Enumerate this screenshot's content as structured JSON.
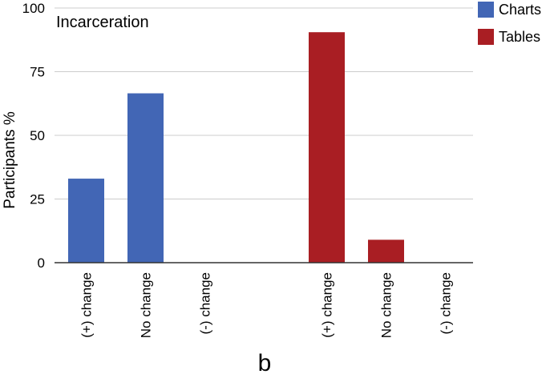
{
  "chart_data": {
    "type": "bar",
    "title": "Incarceration",
    "ylabel": "Participants %",
    "xlabel": "",
    "ylim": [
      0,
      100
    ],
    "yticks": [
      0,
      25,
      50,
      75,
      100
    ],
    "grid": true,
    "legend_position": "top-right",
    "categories": [
      "(+) change",
      "No change",
      "(-) change"
    ],
    "series": [
      {
        "name": "Charts",
        "color": "#4266b5",
        "values": [
          33,
          66.5,
          0
        ]
      },
      {
        "name": "Tables",
        "color": "#a91e23",
        "values": [
          90.5,
          9,
          0
        ]
      }
    ],
    "panel_label": "b"
  }
}
